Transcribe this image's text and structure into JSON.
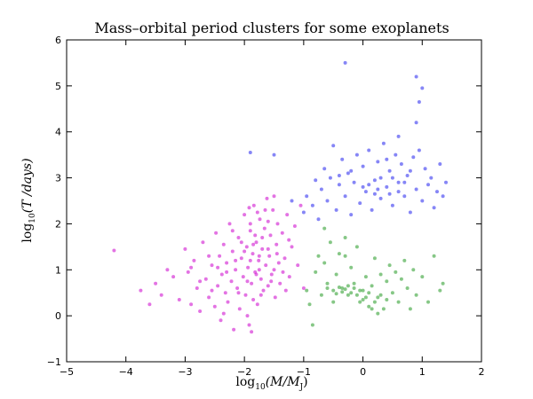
{
  "chart_data": {
    "type": "scatter",
    "title": "Mass–orbital period clusters for some exoplanets",
    "xlabel": {
      "prefix": "log",
      "subscript": "10",
      "body": "(M/M",
      "body_subscript": "J",
      "suffix": ")"
    },
    "ylabel": {
      "prefix": "log",
      "subscript": "10",
      "body": "(T /days)"
    },
    "xlim": [
      -5,
      2
    ],
    "ylim": [
      -1,
      6
    ],
    "xticks": [
      "−5",
      "−4",
      "−3",
      "−2",
      "−1",
      "0",
      "1",
      "2"
    ],
    "yticks": [
      "−1",
      "0",
      "1",
      "2",
      "3",
      "4",
      "5",
      "6"
    ],
    "grid": false,
    "legend": "none",
    "series": [
      {
        "color": "#cc00cc",
        "points": [
          [
            -4.2,
            1.42
          ],
          [
            -3.75,
            0.55
          ],
          [
            -3.5,
            0.7
          ],
          [
            -3.3,
            1.0
          ],
          [
            -3.2,
            0.85
          ],
          [
            -3.1,
            0.35
          ],
          [
            -3.0,
            1.45
          ],
          [
            -2.95,
            0.95
          ],
          [
            -2.9,
            0.25
          ],
          [
            -2.85,
            1.2
          ],
          [
            -2.8,
            0.6
          ],
          [
            -2.75,
            0.1
          ],
          [
            -2.7,
            1.6
          ],
          [
            -2.65,
            0.8
          ],
          [
            -2.6,
            0.4
          ],
          [
            -2.55,
            1.1
          ],
          [
            -2.5,
            0.2
          ],
          [
            -2.48,
            1.8
          ],
          [
            -2.45,
            0.65
          ],
          [
            -2.42,
            1.3
          ],
          [
            -2.4,
            -0.1
          ],
          [
            -2.38,
            0.9
          ],
          [
            -2.35,
            1.55
          ],
          [
            -2.32,
            0.5
          ],
          [
            -2.3,
            1.15
          ],
          [
            -2.28,
            0.3
          ],
          [
            -2.25,
            2.0
          ],
          [
            -2.22,
            0.75
          ],
          [
            -2.2,
            1.4
          ],
          [
            -2.18,
            -0.3
          ],
          [
            -2.15,
            1.0
          ],
          [
            -2.12,
            0.6
          ],
          [
            -2.1,
            1.7
          ],
          [
            -2.08,
            0.15
          ],
          [
            -2.05,
            1.25
          ],
          [
            -2.02,
            0.85
          ],
          [
            -2.0,
            2.2
          ],
          [
            -1.98,
            0.45
          ],
          [
            -1.96,
            1.5
          ],
          [
            -1.94,
            1.05
          ],
          [
            -1.92,
            -0.2
          ],
          [
            -1.9,
            1.85
          ],
          [
            -1.88,
            0.7
          ],
          [
            -1.86,
            1.35
          ],
          [
            -1.84,
            2.4
          ],
          [
            -1.82,
            0.95
          ],
          [
            -1.8,
            1.6
          ],
          [
            -1.78,
            0.25
          ],
          [
            -1.76,
            1.2
          ],
          [
            -1.74,
            2.1
          ],
          [
            -1.72,
            0.8
          ],
          [
            -1.7,
            1.45
          ],
          [
            -1.68,
            0.55
          ],
          [
            -1.66,
            1.9
          ],
          [
            -1.64,
            1.1
          ],
          [
            -1.62,
            2.55
          ],
          [
            -1.6,
            0.65
          ],
          [
            -1.58,
            1.3
          ],
          [
            -1.56,
            1.75
          ],
          [
            -1.54,
            0.9
          ],
          [
            -1.52,
            2.3
          ],
          [
            -1.5,
            1.0
          ],
          [
            -1.48,
            0.4
          ],
          [
            -1.46,
            1.55
          ],
          [
            -1.44,
            2.0
          ],
          [
            -1.42,
            1.15
          ],
          [
            -1.4,
            0.7
          ],
          [
            -1.36,
            1.8
          ],
          [
            -1.32,
            1.25
          ],
          [
            -1.28,
            2.2
          ],
          [
            -1.24,
            0.85
          ],
          [
            -1.2,
            1.5
          ],
          [
            -1.15,
            1.95
          ],
          [
            -1.1,
            1.1
          ],
          [
            -1.05,
            2.4
          ],
          [
            -1.0,
            0.6
          ],
          [
            -1.95,
            0.0
          ],
          [
            -2.6,
            1.3
          ],
          [
            -2.3,
            0.95
          ],
          [
            -1.85,
            0.35
          ],
          [
            -2.05,
            1.6
          ],
          [
            -1.75,
            1.0
          ],
          [
            -2.45,
            1.05
          ],
          [
            -1.65,
            2.3
          ],
          [
            -1.9,
            1.2
          ],
          [
            -1.8,
            0.9
          ],
          [
            -2.1,
            0.5
          ],
          [
            -1.7,
            1.7
          ],
          [
            -2.2,
            1.85
          ],
          [
            -1.6,
            1.45
          ],
          [
            -3.4,
            0.45
          ],
          [
            -2.9,
            1.05
          ],
          [
            -2.75,
            0.75
          ],
          [
            -3.6,
            0.25
          ],
          [
            -1.55,
            0.75
          ],
          [
            -1.45,
            1.35
          ],
          [
            -1.35,
            0.95
          ],
          [
            -1.25,
            1.65
          ],
          [
            -1.6,
            2.05
          ],
          [
            -1.9,
            2.0
          ],
          [
            -2.0,
            1.4
          ],
          [
            -1.85,
            1.55
          ],
          [
            -1.75,
            1.3
          ],
          [
            -1.95,
            0.75
          ],
          [
            -2.15,
            1.2
          ],
          [
            -1.72,
            0.45
          ],
          [
            -1.82,
            1.75
          ],
          [
            -2.35,
            0.05
          ],
          [
            -1.88,
            -0.35
          ],
          [
            -2.55,
            0.55
          ],
          [
            -1.5,
            2.6
          ],
          [
            -1.78,
            2.25
          ],
          [
            -1.92,
            2.35
          ],
          [
            -1.3,
            0.55
          ]
        ]
      },
      {
        "color": "#2222ee",
        "points": [
          [
            -1.9,
            3.55
          ],
          [
            -1.5,
            3.5
          ],
          [
            -1.2,
            2.5
          ],
          [
            -1.0,
            2.25
          ],
          [
            -0.95,
            2.6
          ],
          [
            -0.85,
            2.4
          ],
          [
            -0.8,
            2.95
          ],
          [
            -0.75,
            2.1
          ],
          [
            -0.7,
            2.75
          ],
          [
            -0.65,
            3.2
          ],
          [
            -0.6,
            2.5
          ],
          [
            -0.55,
            3.0
          ],
          [
            -0.5,
            3.7
          ],
          [
            -0.45,
            2.3
          ],
          [
            -0.4,
            2.85
          ],
          [
            -0.35,
            3.4
          ],
          [
            -0.3,
            2.6
          ],
          [
            -0.25,
            3.1
          ],
          [
            -0.2,
            2.2
          ],
          [
            -0.15,
            2.9
          ],
          [
            -0.1,
            3.5
          ],
          [
            -0.05,
            2.45
          ],
          [
            0.0,
            3.25
          ],
          [
            0.05,
            2.7
          ],
          [
            0.1,
            3.6
          ],
          [
            0.15,
            2.3
          ],
          [
            0.2,
            2.95
          ],
          [
            0.25,
            3.35
          ],
          [
            0.3,
            2.55
          ],
          [
            0.35,
            3.75
          ],
          [
            0.4,
            2.8
          ],
          [
            0.45,
            3.15
          ],
          [
            0.5,
            2.4
          ],
          [
            0.55,
            3.5
          ],
          [
            0.6,
            2.9
          ],
          [
            0.65,
            3.3
          ],
          [
            0.7,
            2.6
          ],
          [
            0.75,
            3.05
          ],
          [
            0.8,
            2.25
          ],
          [
            0.85,
            3.45
          ],
          [
            0.9,
            2.75
          ],
          [
            0.95,
            3.6
          ],
          [
            1.0,
            2.5
          ],
          [
            1.05,
            3.2
          ],
          [
            1.1,
            2.85
          ],
          [
            1.15,
            3.0
          ],
          [
            1.2,
            2.35
          ],
          [
            1.25,
            2.7
          ],
          [
            1.3,
            3.3
          ],
          [
            1.35,
            2.6
          ],
          [
            1.4,
            2.9
          ],
          [
            0.9,
            5.2
          ],
          [
            1.0,
            4.95
          ],
          [
            0.95,
            4.65
          ],
          [
            0.9,
            4.2
          ],
          [
            0.6,
            3.9
          ],
          [
            -0.3,
            5.5
          ],
          [
            0.2,
            2.65
          ],
          [
            0.4,
            3.4
          ],
          [
            0.0,
            2.8
          ],
          [
            -0.2,
            3.15
          ],
          [
            0.6,
            2.7
          ],
          [
            0.8,
            3.15
          ],
          [
            0.3,
            3.0
          ],
          [
            0.1,
            2.85
          ],
          [
            -0.4,
            3.05
          ],
          [
            0.5,
            3.0
          ],
          [
            0.7,
            2.9
          ],
          [
            0.25,
            2.75
          ],
          [
            0.45,
            2.65
          ]
        ]
      },
      {
        "color": "#229922",
        "points": [
          [
            -0.85,
            -0.2
          ],
          [
            -0.9,
            0.25
          ],
          [
            -0.95,
            0.55
          ],
          [
            -0.8,
            0.95
          ],
          [
            -0.75,
            1.3
          ],
          [
            -0.7,
            0.45
          ],
          [
            -0.65,
            1.15
          ],
          [
            -0.6,
            0.7
          ],
          [
            -0.55,
            1.6
          ],
          [
            -0.5,
            0.3
          ],
          [
            -0.45,
            0.9
          ],
          [
            -0.4,
            1.35
          ],
          [
            -0.35,
            0.6
          ],
          [
            -0.3,
            1.7
          ],
          [
            -0.25,
            0.45
          ],
          [
            -0.2,
            1.05
          ],
          [
            -0.15,
            0.7
          ],
          [
            -0.1,
            1.5
          ],
          [
            -0.05,
            0.55
          ],
          [
            0.0,
            0.35
          ],
          [
            0.05,
            0.85
          ],
          [
            0.1,
            0.2
          ],
          [
            0.15,
            0.65
          ],
          [
            0.2,
            1.25
          ],
          [
            0.25,
            0.4
          ],
          [
            0.3,
            0.9
          ],
          [
            0.35,
            0.15
          ],
          [
            0.4,
            0.75
          ],
          [
            0.45,
            1.1
          ],
          [
            0.5,
            0.5
          ],
          [
            0.55,
            0.95
          ],
          [
            0.6,
            0.3
          ],
          [
            0.65,
            0.8
          ],
          [
            0.7,
            1.2
          ],
          [
            0.75,
            0.6
          ],
          [
            0.8,
            0.15
          ],
          [
            0.85,
            1.0
          ],
          [
            0.9,
            0.45
          ],
          [
            1.0,
            0.85
          ],
          [
            1.1,
            0.3
          ],
          [
            1.2,
            1.3
          ],
          [
            1.3,
            0.55
          ],
          [
            1.35,
            0.7
          ],
          [
            -0.6,
            0.6
          ],
          [
            -0.5,
            0.55
          ],
          [
            -0.4,
            0.62
          ],
          [
            -0.3,
            0.58
          ],
          [
            -0.2,
            0.5
          ],
          [
            -0.1,
            0.45
          ],
          [
            0.0,
            0.55
          ],
          [
            0.05,
            0.4
          ],
          [
            -0.25,
            0.65
          ],
          [
            -0.35,
            0.52
          ],
          [
            -0.15,
            0.6
          ],
          [
            0.1,
            0.5
          ],
          [
            -0.45,
            0.48
          ],
          [
            0.2,
            0.3
          ],
          [
            0.3,
            0.45
          ],
          [
            0.15,
            0.15
          ],
          [
            0.25,
            0.05
          ],
          [
            -0.65,
            1.9
          ],
          [
            -0.3,
            1.3
          ],
          [
            0.4,
            0.35
          ],
          [
            -0.05,
            0.3
          ]
        ]
      }
    ]
  }
}
